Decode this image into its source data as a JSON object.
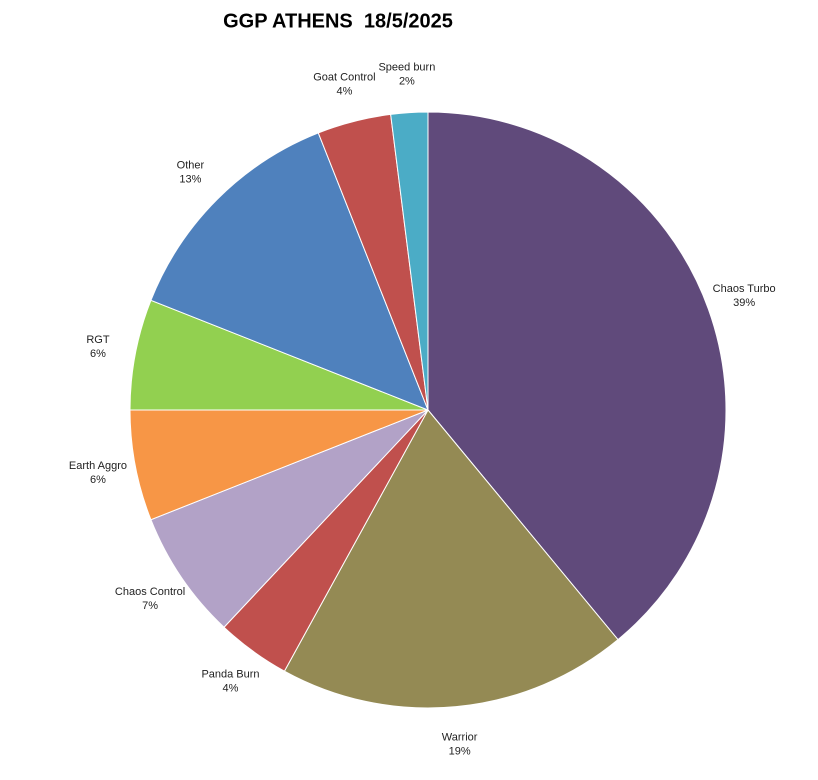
{
  "chart_data": {
    "type": "pie",
    "title": "GGP ATHENS  18/5/2025",
    "categories": [
      "Chaos Turbo",
      "Warrior",
      "Panda Burn",
      "Chaos Control",
      "Earth Aggro",
      "RGT",
      "Other",
      "Goat Control",
      "Speed burn"
    ],
    "values": [
      39,
      19,
      4,
      7,
      6,
      6,
      13,
      4,
      2
    ],
    "value_labels": [
      "39%",
      "19%",
      "4%",
      "7%",
      "6%",
      "6%",
      "13%",
      "4%",
      "2%"
    ],
    "colors": [
      "#604a7b",
      "#948a54",
      "#c0504d",
      "#b2a2c7",
      "#f79646",
      "#92d050",
      "#4f81bd",
      "#c0504d",
      "#4bacc6"
    ]
  }
}
